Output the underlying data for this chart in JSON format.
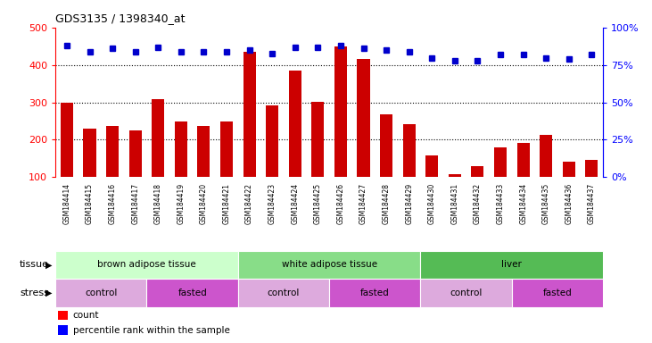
{
  "title": "GDS3135 / 1398340_at",
  "samples": [
    "GSM184414",
    "GSM184415",
    "GSM184416",
    "GSM184417",
    "GSM184418",
    "GSM184419",
    "GSM184420",
    "GSM184421",
    "GSM184422",
    "GSM184423",
    "GSM184424",
    "GSM184425",
    "GSM184426",
    "GSM184427",
    "GSM184428",
    "GSM184429",
    "GSM184430",
    "GSM184431",
    "GSM184432",
    "GSM184433",
    "GSM184434",
    "GSM184435",
    "GSM184436",
    "GSM184437"
  ],
  "counts": [
    300,
    230,
    236,
    224,
    308,
    250,
    238,
    248,
    435,
    291,
    385,
    302,
    450,
    416,
    268,
    242,
    157,
    108,
    130,
    180,
    192,
    212,
    140,
    147
  ],
  "percentiles": [
    88,
    84,
    86,
    84,
    87,
    84,
    84,
    84,
    85,
    83,
    87,
    87,
    88,
    86,
    85,
    84,
    80,
    78,
    78,
    82,
    82,
    80,
    79,
    82
  ],
  "bar_color": "#cc0000",
  "dot_color": "#0000cc",
  "ylim_left": [
    100,
    500
  ],
  "ylim_right": [
    0,
    100
  ],
  "yticks_left": [
    100,
    200,
    300,
    400,
    500
  ],
  "yticks_right": [
    0,
    25,
    50,
    75,
    100
  ],
  "ytick_labels_right": [
    "0%",
    "25%",
    "50%",
    "75%",
    "100%"
  ],
  "tissue_groups": [
    {
      "label": "brown adipose tissue",
      "start": 0,
      "end": 8,
      "color": "#ccffcc"
    },
    {
      "label": "white adipose tissue",
      "start": 8,
      "end": 16,
      "color": "#88dd88"
    },
    {
      "label": "liver",
      "start": 16,
      "end": 24,
      "color": "#55bb55"
    }
  ],
  "stress_groups": [
    {
      "label": "control",
      "start": 0,
      "end": 4,
      "color": "#ddaadd"
    },
    {
      "label": "fasted",
      "start": 4,
      "end": 8,
      "color": "#cc55cc"
    },
    {
      "label": "control",
      "start": 8,
      "end": 12,
      "color": "#ddaadd"
    },
    {
      "label": "fasted",
      "start": 12,
      "end": 16,
      "color": "#cc55cc"
    },
    {
      "label": "control",
      "start": 16,
      "end": 20,
      "color": "#ddaadd"
    },
    {
      "label": "fasted",
      "start": 20,
      "end": 24,
      "color": "#cc55cc"
    }
  ],
  "legend_count_label": "count",
  "legend_pct_label": "percentile rank within the sample",
  "tissue_label": "tissue",
  "stress_label": "stress"
}
